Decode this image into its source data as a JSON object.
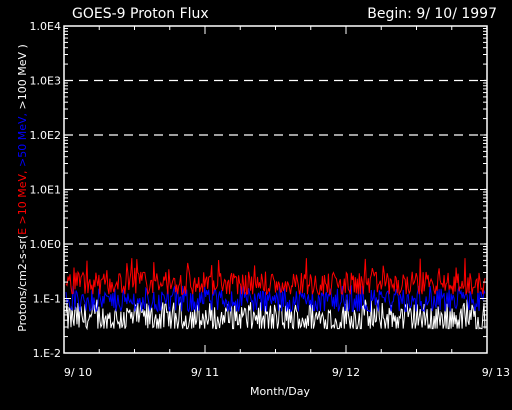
{
  "chart_data": {
    "type": "line",
    "title": "GOES-9 Proton Flux",
    "subtitle": "Begin: 9/ 10/ 1997",
    "xlabel": "Month/Day",
    "ylabel_parts": [
      {
        "text": "Protons/cm2-s-sr(",
        "color": "#ffffff"
      },
      {
        "text": "E >10 MeV, ",
        "color": "#ff0000"
      },
      {
        "text": ">50 MeV, ",
        "color": "#0000ff"
      },
      {
        "text": ">100 MeV )",
        "color": "#ffffff"
      }
    ],
    "y_scale": "log",
    "ylim": [
      0.01,
      10000
    ],
    "y_ticks": [
      {
        "label": "1.0E4",
        "value": 10000
      },
      {
        "label": "1.0E3",
        "value": 1000
      },
      {
        "label": "1.0E2",
        "value": 100
      },
      {
        "label": "1.0E1",
        "value": 10
      },
      {
        "label": "1.0E0",
        "value": 1
      },
      {
        "label": "1.E-1",
        "value": 0.1
      },
      {
        "label": "1.E-2",
        "value": 0.01
      }
    ],
    "y_gridlines": [
      1000,
      100,
      10,
      1
    ],
    "xlim": [
      "1997-09-10",
      "1997-09-13"
    ],
    "x_ticks": [
      {
        "label": "9/ 10",
        "value": "1997-09-10"
      },
      {
        "label": "9/ 11",
        "value": "1997-09-11"
      },
      {
        "label": "9/ 12",
        "value": "1997-09-12"
      },
      {
        "label": "9/ 13",
        "value": "1997-09-13"
      }
    ],
    "series": [
      {
        "color": "#ffffff",
        "center": 0.043,
        "spread": 0.0005,
        "floor": 0.028,
        "ceiling": 0.095
      },
      {
        "color": "#0000ff",
        "center": 0.09,
        "spread": 0.0003,
        "floor": 0.058,
        "ceiling": 0.17
      },
      {
        "color": "#ff0000",
        "center": 0.185,
        "spread": 0.0003,
        "floor": 0.12,
        "ceiling": 0.55
      }
    ]
  }
}
